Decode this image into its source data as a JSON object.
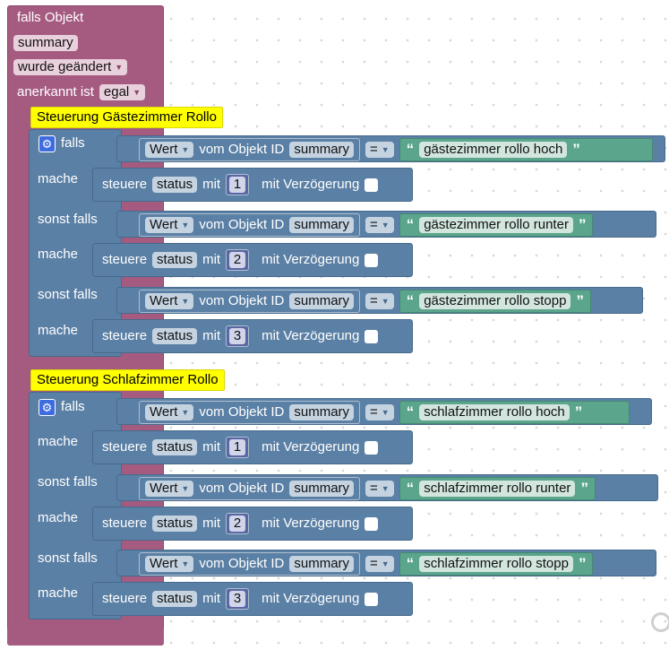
{
  "trigger": {
    "title": "falls Objekt",
    "object": "summary",
    "event": "wurde geändert",
    "ack_label": "anerkannt ist",
    "ack_value": "egal"
  },
  "groups": [
    {
      "comment": "Steuerung Gästezimmer Rollo",
      "conditions": [
        {
          "keyword": "falls",
          "value_label": "Wert",
          "from_label": "vom Objekt ID",
          "object": "summary",
          "operator": "=",
          "string": "gästezimmer rollo hoch",
          "do_label": "mache",
          "control_label": "steuere",
          "control_object": "status",
          "with_label": "mit",
          "number": "1",
          "delay_label": "mit Verzögerung"
        },
        {
          "keyword": "sonst falls",
          "value_label": "Wert",
          "from_label": "vom Objekt ID",
          "object": "summary",
          "operator": "=",
          "string": "gästezimmer rollo runter",
          "do_label": "mache",
          "control_label": "steuere",
          "control_object": "status",
          "with_label": "mit",
          "number": "2",
          "delay_label": "mit Verzögerung"
        },
        {
          "keyword": "sonst falls",
          "value_label": "Wert",
          "from_label": "vom Objekt ID",
          "object": "summary",
          "operator": "=",
          "string": "gästezimmer rollo stopp",
          "do_label": "mache",
          "control_label": "steuere",
          "control_object": "status",
          "with_label": "mit",
          "number": "3",
          "delay_label": "mit Verzögerung"
        }
      ]
    },
    {
      "comment": "Steuerung Schlafzimmer Rollo",
      "conditions": [
        {
          "keyword": "falls",
          "value_label": "Wert",
          "from_label": "vom Objekt ID",
          "object": "summary",
          "operator": "=",
          "string": "schlafzimmer rollo hoch",
          "do_label": "mache",
          "control_label": "steuere",
          "control_object": "status",
          "with_label": "mit",
          "number": "1",
          "delay_label": "mit Verzögerung"
        },
        {
          "keyword": "sonst falls",
          "value_label": "Wert",
          "from_label": "vom Objekt ID",
          "object": "summary",
          "operator": "=",
          "string": "schlafzimmer rollo runter",
          "do_label": "mache",
          "control_label": "steuere",
          "control_object": "status",
          "with_label": "mit",
          "number": "2",
          "delay_label": "mit Verzögerung"
        },
        {
          "keyword": "sonst falls",
          "value_label": "Wert",
          "from_label": "vom Objekt ID",
          "object": "summary",
          "operator": "=",
          "string": "schlafzimmer rollo stopp",
          "do_label": "mache",
          "control_label": "steuere",
          "control_object": "status",
          "with_label": "mit",
          "number": "3",
          "delay_label": "mit Verzögerung"
        }
      ]
    }
  ],
  "colors": {
    "trigger": "#a55b80",
    "logic": "#5b80a5",
    "string": "#5ba58c",
    "comment": "#ffff00"
  }
}
